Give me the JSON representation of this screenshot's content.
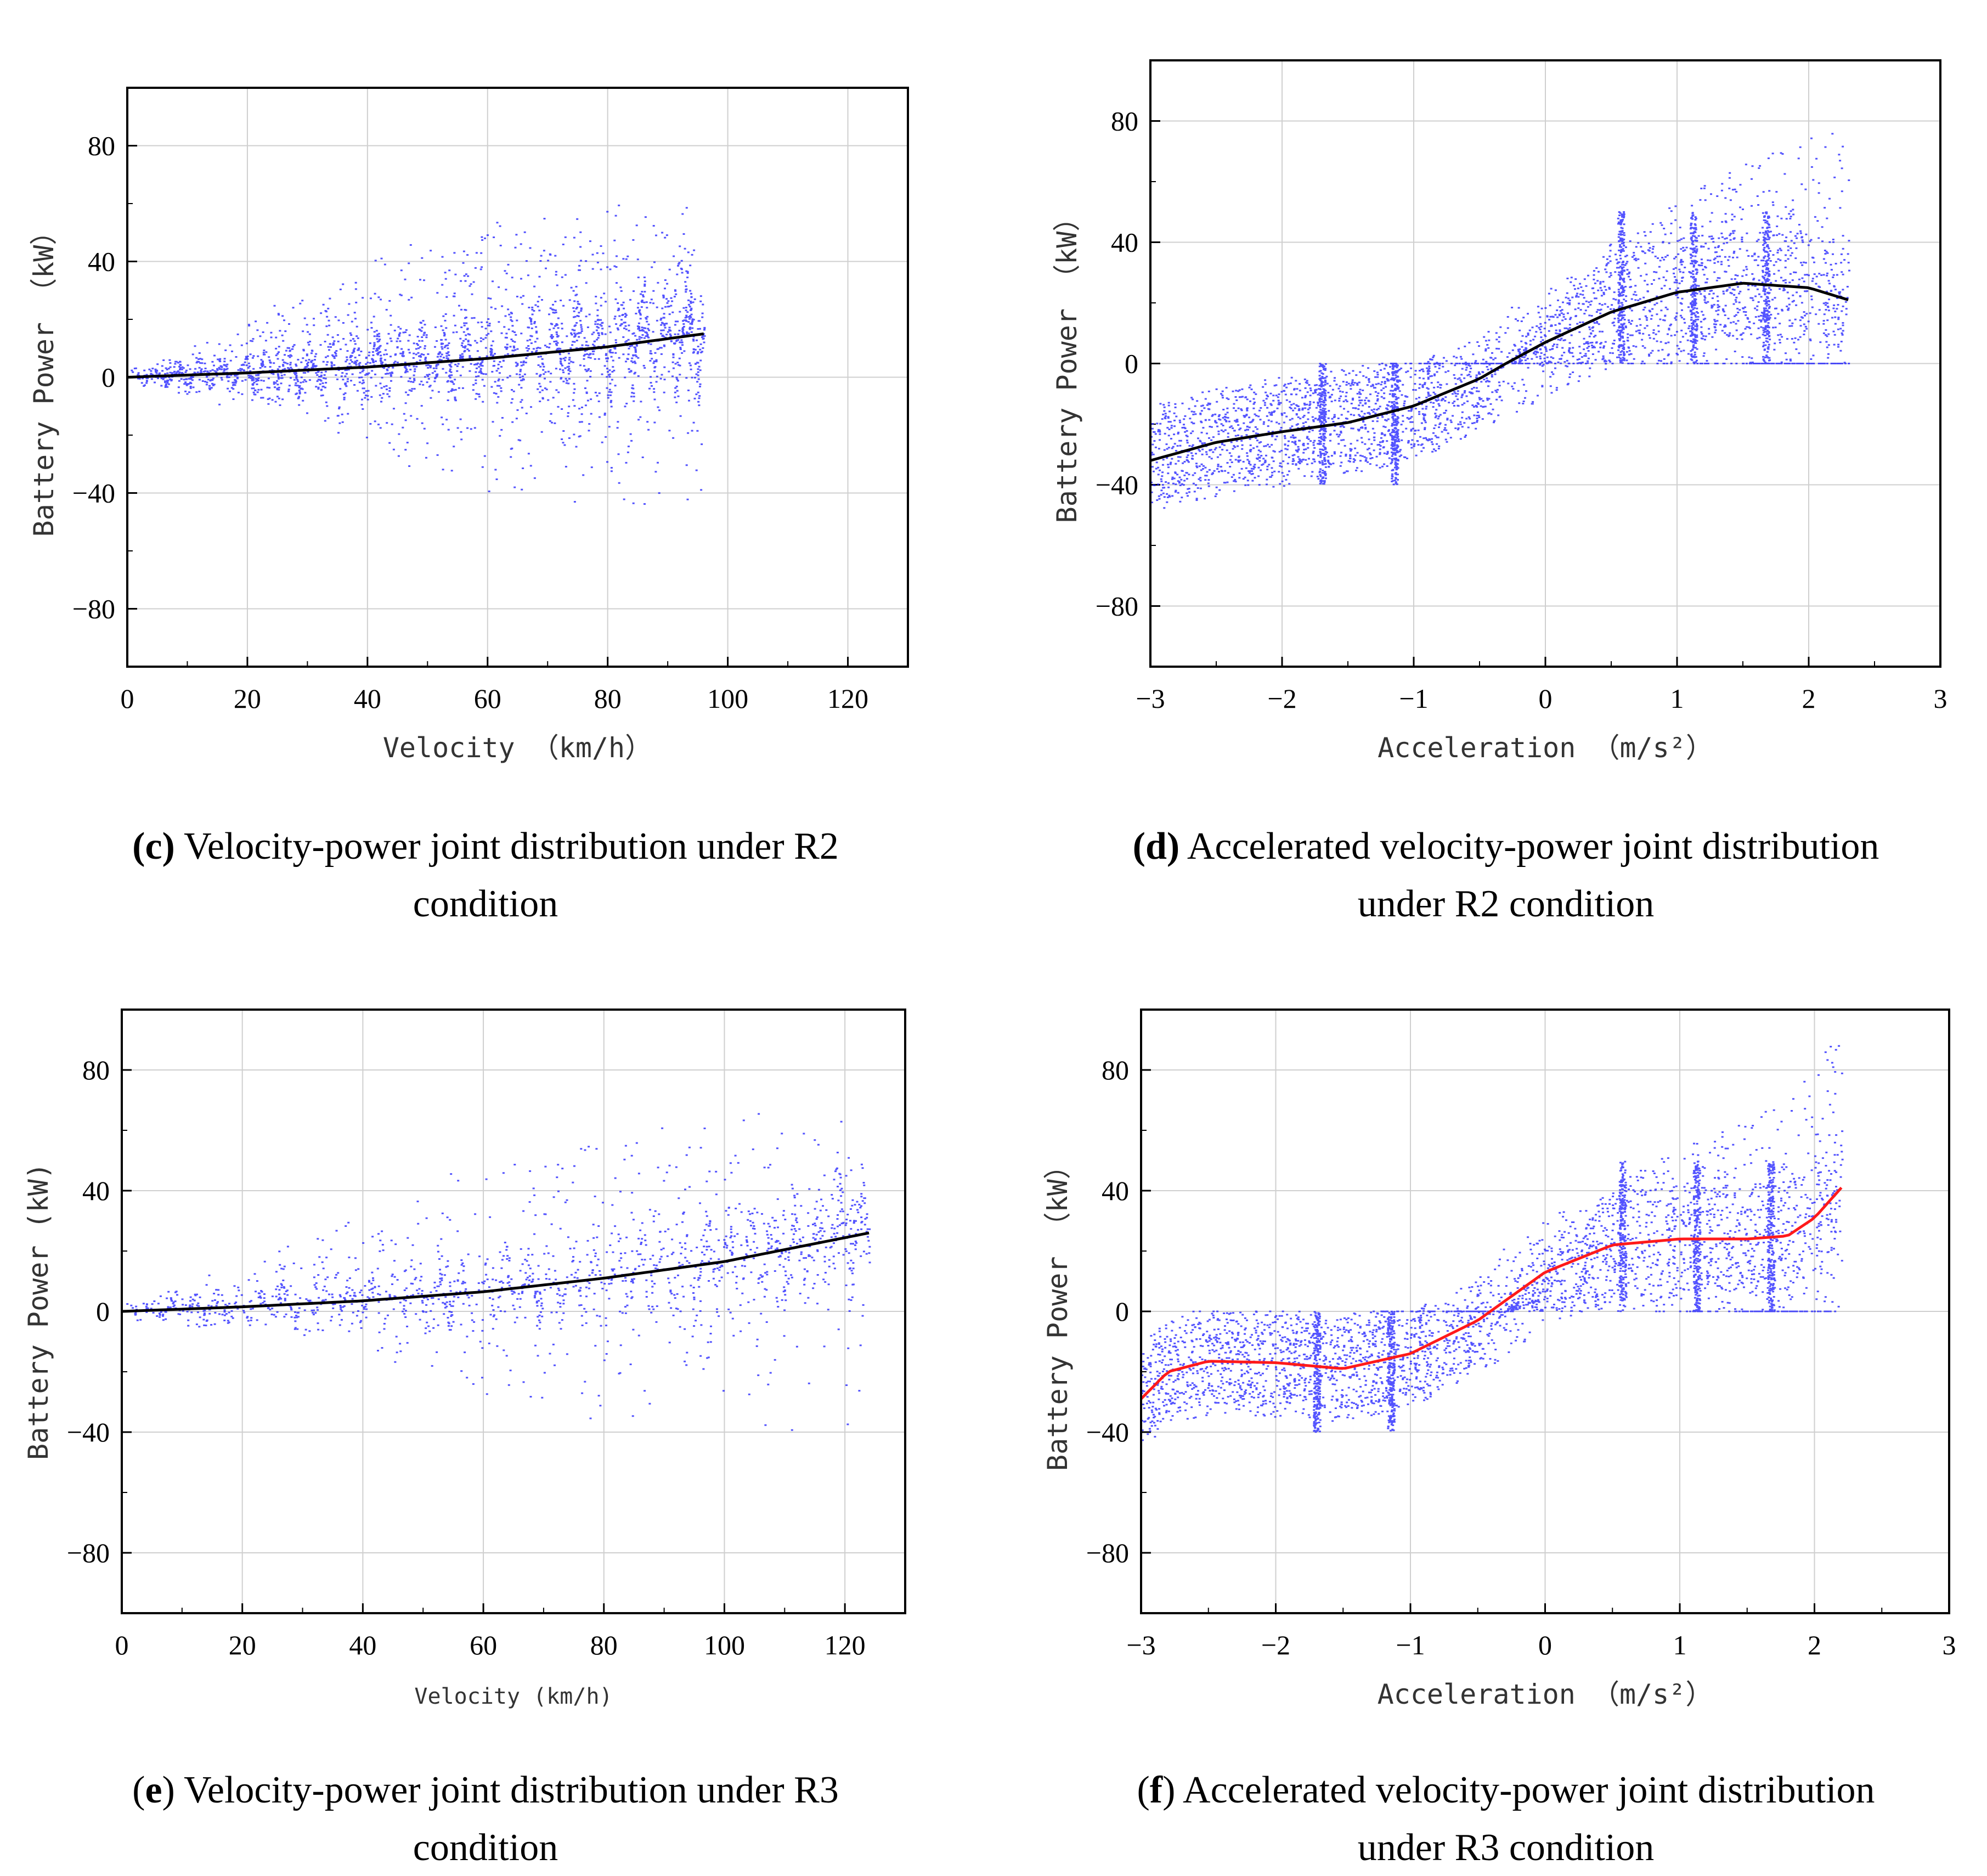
{
  "colors": {
    "scatter": "#1a1aff",
    "fit_black": "#000000",
    "fit_red": "#ff1a1a",
    "grid": "#cfcfcf",
    "axis": "#000000"
  },
  "panels": [
    {
      "tag": "c",
      "caption_line1": " Velocity-power joint distribution under R2",
      "caption_line2": "condition"
    },
    {
      "tag": "d",
      "caption_line1": " Accelerated velocity-power joint distribution",
      "caption_line2": "under R2 condition"
    },
    {
      "tag": "e",
      "caption_line1": " Velocity-power joint distribution under R3",
      "caption_line2": "condition"
    },
    {
      "tag": "f",
      "caption_line1": " Accelerated velocity-power joint distribution",
      "caption_line2": "under R3 condition"
    }
  ],
  "chart_data": [
    {
      "type": "scatter",
      "xlabel": "Velocity （km/h）",
      "ylabel": "Battery Power （kW）",
      "xlim": [
        0,
        130
      ],
      "ylim": [
        -100,
        100
      ],
      "xticks": [
        "0",
        "20",
        "40",
        "60",
        "80",
        "100",
        "120"
      ],
      "yticks": [
        "80",
        "40",
        "0",
        "−40",
        "−80"
      ],
      "grid": true,
      "scatter_x_range": [
        0,
        96
      ],
      "scatter_envelope_kw": {
        "upper_max": 62,
        "lower_min": -50
      },
      "fit_curve": {
        "color": "black",
        "x": [
          0,
          20,
          40,
          60,
          80,
          96
        ],
        "y": [
          0,
          1.5,
          3.5,
          6.5,
          10.5,
          15
        ]
      }
    },
    {
      "type": "scatter",
      "xlabel": "Acceleration （m/s²）",
      "ylabel": "Battery Power （kW）",
      "xlim": [
        -3,
        3
      ],
      "ylim": [
        -100,
        100
      ],
      "xticks": [
        "−3",
        "−2",
        "−1",
        "0",
        "1",
        "2",
        "3"
      ],
      "yticks": [
        "80",
        "40",
        "0",
        "−40",
        "−80"
      ],
      "grid": true,
      "scatter_x_range": [
        -3,
        2.3
      ],
      "fit_curve": {
        "color": "black",
        "x": [
          -3,
          -2.5,
          -2,
          -1.5,
          -1,
          -0.5,
          -0.3,
          0,
          0.5,
          1,
          1.5,
          2,
          2.3
        ],
        "y": [
          -32,
          -26,
          -22.5,
          -19.5,
          -14,
          -5,
          0,
          7,
          17,
          23.5,
          26.5,
          25,
          21
        ]
      }
    },
    {
      "type": "scatter",
      "xlabel": "Velocity (km/h)",
      "ylabel": "Battery Power (kW)",
      "xlim": [
        0,
        130
      ],
      "ylim": [
        -100,
        100
      ],
      "xticks": [
        "0",
        "20",
        "40",
        "60",
        "80",
        "100",
        "120"
      ],
      "yticks": [
        "80",
        "40",
        "0",
        "−40",
        "−80"
      ],
      "grid": true,
      "scatter_x_range": [
        0,
        124
      ],
      "scatter_envelope_kw": {
        "upper_max": 68,
        "lower_min": -46
      },
      "fit_curve": {
        "color": "black",
        "x": [
          0,
          20,
          40,
          60,
          80,
          100,
          124
        ],
        "y": [
          0,
          1.5,
          3.5,
          6.5,
          11,
          16.5,
          26
        ]
      }
    },
    {
      "type": "scatter",
      "xlabel": "Acceleration （m/s²）",
      "ylabel": "Battery Power （kW）",
      "xlim": [
        -3,
        3
      ],
      "ylim": [
        -100,
        100
      ],
      "xticks": [
        "−3",
        "−2",
        "−1",
        "0",
        "1",
        "2",
        "3"
      ],
      "yticks": [
        "80",
        "40",
        "0",
        "−40",
        "−80"
      ],
      "grid": true,
      "scatter_x_range": [
        -3,
        2.2
      ],
      "fit_curve": {
        "color": "red",
        "x": [
          -3,
          -2.8,
          -2.5,
          -2,
          -1.5,
          -1,
          -0.5,
          0,
          0.5,
          1,
          1.5,
          1.8,
          2,
          2.2
        ],
        "y": [
          -29,
          -20,
          -16.5,
          -17,
          -19,
          -14,
          -3,
          13,
          22,
          24,
          24,
          25,
          31,
          41
        ]
      }
    }
  ]
}
